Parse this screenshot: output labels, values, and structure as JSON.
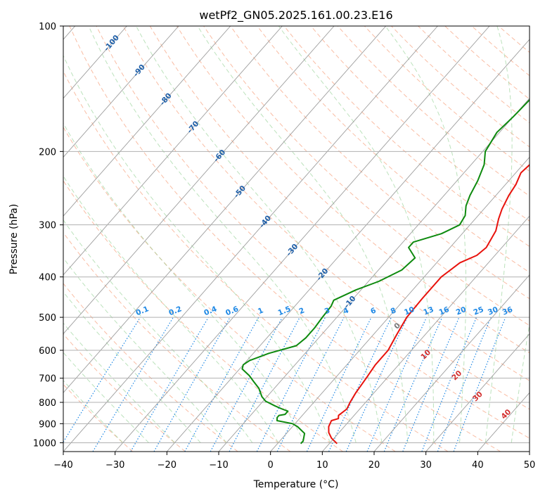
{
  "chart_data": {
    "type": "line",
    "title": "wetPf2_GN05.2025.161.00.23.E16",
    "xlabel": "Temperature (°C)",
    "ylabel": "Pressure (hPa)",
    "xlim": [
      -40,
      50
    ],
    "ylim": [
      1050,
      100
    ],
    "y_scale": "log",
    "grid": true,
    "x_ticks": [
      -40,
      -30,
      -20,
      -10,
      0,
      10,
      20,
      30,
      40,
      50
    ],
    "y_ticks": [
      1000,
      900,
      800,
      700,
      600,
      500,
      400,
      300,
      200,
      100
    ],
    "series": [
      {
        "color": "#e8120c",
        "points": [
          [
            11.5,
            1005
          ],
          [
            9.5,
            975
          ],
          [
            8,
            945
          ],
          [
            7,
            915
          ],
          [
            6.5,
            885
          ],
          [
            7.5,
            875
          ],
          [
            7,
            860
          ],
          [
            7.5,
            830
          ],
          [
            7,
            800
          ],
          [
            6.5,
            760
          ],
          [
            6,
            700
          ],
          [
            5.5,
            650
          ],
          [
            5.5,
            600
          ],
          [
            4.5,
            550
          ],
          [
            3.5,
            500
          ],
          [
            3.3,
            450
          ],
          [
            3.3,
            400
          ],
          [
            4.5,
            370
          ],
          [
            6.5,
            355
          ],
          [
            7,
            340
          ],
          [
            6,
            310
          ],
          [
            4.5,
            290
          ],
          [
            3.5,
            275
          ],
          [
            2.5,
            255
          ],
          [
            2,
            240
          ],
          [
            1,
            225
          ],
          [
            1.5,
            210
          ],
          [
            4,
            205
          ],
          [
            9,
            195
          ],
          [
            12,
            185
          ],
          [
            14,
            170
          ],
          [
            16,
            155
          ],
          [
            19,
            140
          ],
          [
            22,
            125
          ],
          [
            25,
            112
          ],
          [
            28,
            105
          ],
          [
            32,
            100
          ]
        ]
      },
      {
        "color": "#0e8a0e",
        "points": [
          [
            4.5,
            1005
          ],
          [
            4.5,
            990
          ],
          [
            3.5,
            950
          ],
          [
            1,
            915
          ],
          [
            -0.5,
            900
          ],
          [
            -4,
            885
          ],
          [
            -4.5,
            870
          ],
          [
            -4.5,
            860
          ],
          [
            -3.5,
            855
          ],
          [
            -3.5,
            840
          ],
          [
            -5,
            830
          ],
          [
            -7,
            815
          ],
          [
            -9.5,
            795
          ],
          [
            -11,
            775
          ],
          [
            -13,
            740
          ],
          [
            -15,
            715
          ],
          [
            -17,
            690
          ],
          [
            -19.5,
            665
          ],
          [
            -20,
            650
          ],
          [
            -19.5,
            635
          ],
          [
            -17,
            610
          ],
          [
            -13,
            585
          ],
          [
            -12.5,
            560
          ],
          [
            -12.5,
            530
          ],
          [
            -12.8,
            500
          ],
          [
            -13,
            470
          ],
          [
            -13.5,
            455
          ],
          [
            -11,
            430
          ],
          [
            -8,
            410
          ],
          [
            -5.5,
            385
          ],
          [
            -5,
            360
          ],
          [
            -8,
            340
          ],
          [
            -8,
            330
          ],
          [
            -4,
            315
          ],
          [
            -2,
            300
          ],
          [
            -2.5,
            285
          ],
          [
            -4,
            270
          ],
          [
            -5,
            255
          ],
          [
            -6,
            235
          ],
          [
            -7.5,
            215
          ],
          [
            -9.5,
            200
          ],
          [
            -10.5,
            180
          ],
          [
            -10,
            165
          ],
          [
            -9.5,
            140
          ],
          [
            -7.5,
            125
          ],
          [
            -4,
            115
          ],
          [
            -2,
            107
          ],
          [
            -1,
            100
          ]
        ]
      }
    ],
    "annotations": {
      "isotherm_labels": [
        "-100",
        "-90",
        "-80",
        "-70",
        "-60",
        "-50",
        "-40",
        "-30",
        "-20",
        "-10"
      ],
      "mixing_ratio_labels": [
        "0.1",
        "0.2",
        "0.4",
        "0.6",
        "1",
        "1.5",
        "2",
        "3",
        "4",
        "6",
        "8",
        "10",
        "13",
        "16",
        "20",
        "25",
        "30",
        "36"
      ],
      "moist_adiabat_labels": [
        "0",
        "10",
        "20",
        "30",
        "40"
      ]
    }
  },
  "colors": {
    "temperature": "#e8120c",
    "dewpoint": "#0e8a0e",
    "isotherm_label": "#1f5fa8",
    "mixing_ratio": "#1e88e5",
    "moist_adiabat_label": "#d32f2f",
    "moist_zero_label": "#777777"
  }
}
